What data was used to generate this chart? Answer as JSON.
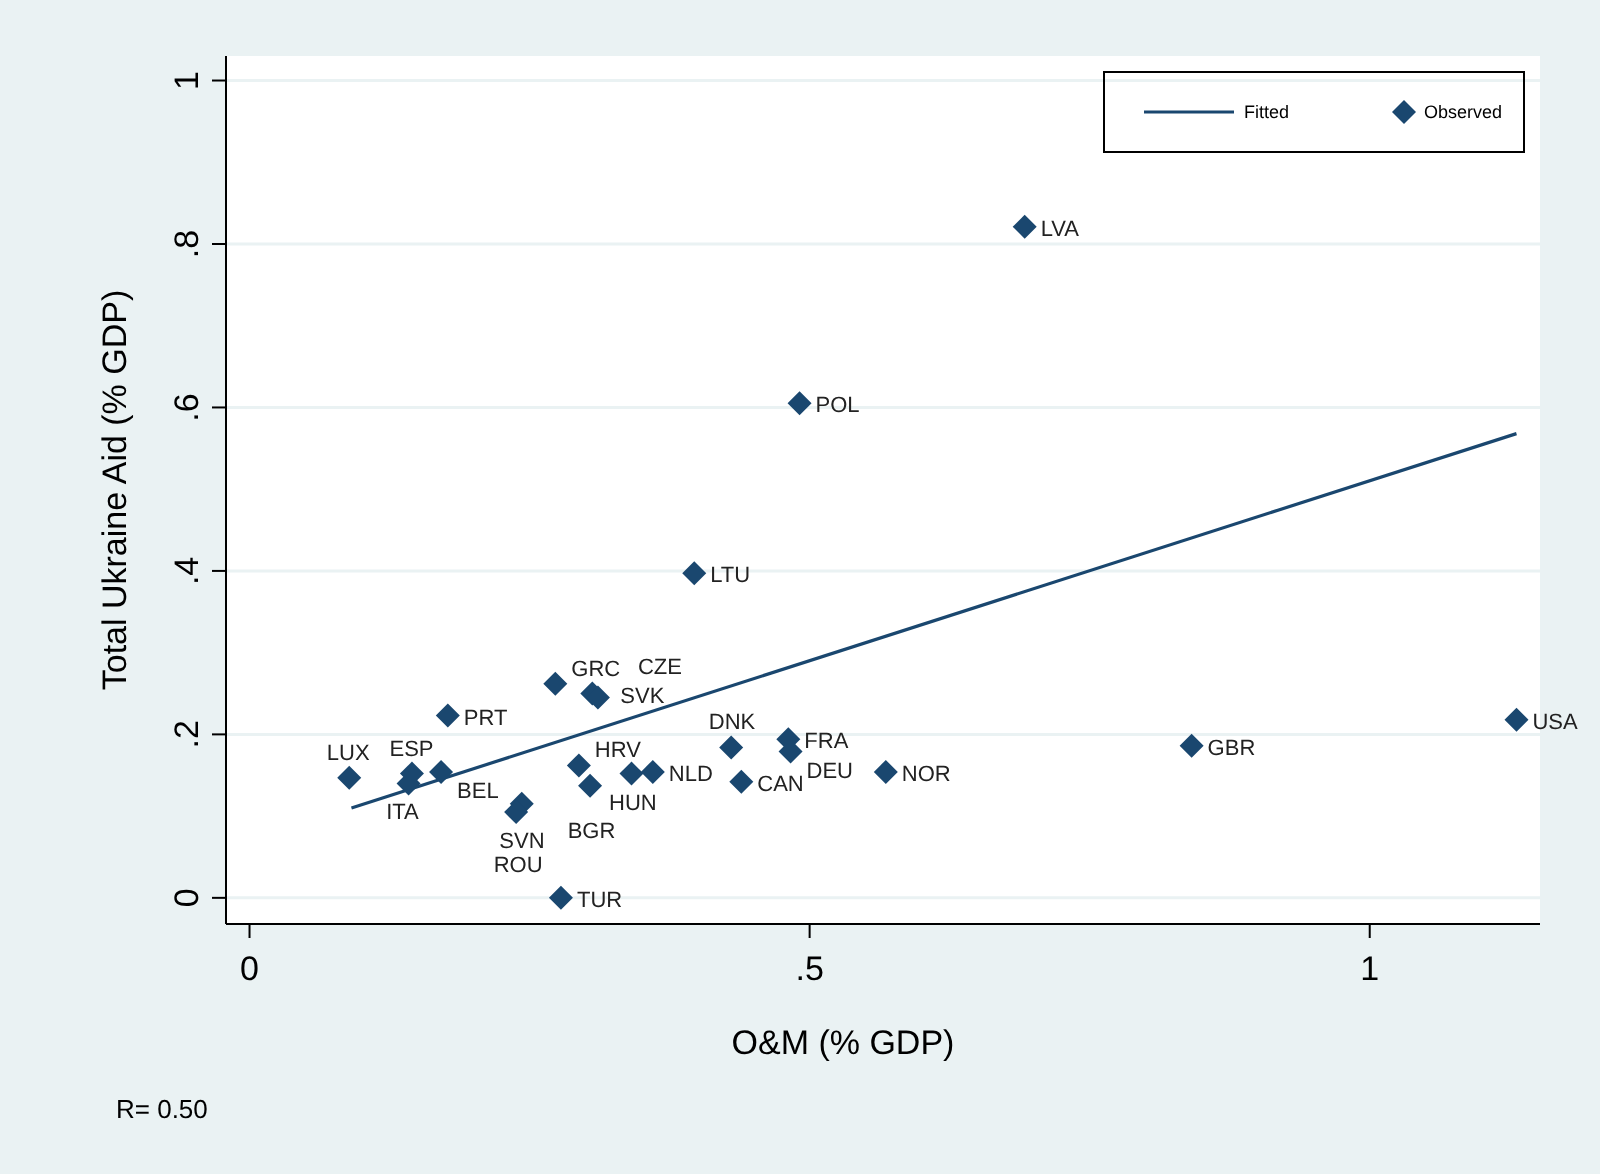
{
  "chart_data": {
    "type": "scatter",
    "xlabel": "O&M (% GDP)",
    "ylabel": "Total Ukraine Aid (% GDP)",
    "xlim": [
      -0.021,
      1.152
    ],
    "ylim": [
      -0.032,
      1.03
    ],
    "xticks": [
      0,
      {
        "value": 0.5,
        "label": ".5"
      },
      1
    ],
    "yticks": [
      0,
      {
        "value": 0.2,
        "label": ".2"
      },
      {
        "value": 0.4,
        "label": ".4"
      },
      {
        "value": 0.6,
        "label": ".6"
      },
      {
        "value": 0.8,
        "label": ".8"
      },
      1
    ],
    "grid": "y",
    "legend": "top right",
    "marker": "diamond",
    "series": [
      {
        "name": "Fitted",
        "type": "line",
        "color": "#1a476f",
        "x": [
          0.091,
          1.131
        ],
        "values": [
          0.11,
          0.568
        ],
        "marker": "none"
      },
      {
        "name": "Observed",
        "color": "#1a476f",
        "x": [
          0.692,
          0.491,
          0.397,
          0.273,
          0.306,
          0.311,
          0.177,
          0.481,
          0.43,
          0.483,
          0.841,
          1.131,
          0.568,
          0.294,
          0.089,
          0.145,
          0.171,
          0.142,
          0.341,
          0.36,
          0.304,
          0.439,
          0.243,
          0.238,
          0.278
        ],
        "values": [
          0.821,
          0.605,
          0.397,
          0.262,
          0.25,
          0.245,
          0.223,
          0.194,
          0.184,
          0.179,
          0.186,
          0.218,
          0.154,
          0.162,
          0.147,
          0.152,
          0.154,
          0.14,
          0.152,
          0.154,
          0.137,
          0.142,
          0.115,
          0.105,
          0
        ]
      }
    ],
    "annotations": [
      {
        "text": "LVA",
        "x": 0.692,
        "y": 0.821
      },
      {
        "text": "POL",
        "x": 0.491,
        "y": 0.605
      },
      {
        "text": "LTU",
        "x": 0.397,
        "y": 0.397
      },
      {
        "text": "GRC",
        "x": 0.273,
        "y": 0.262
      },
      {
        "text": "SVK",
        "x": 0.306,
        "y": 0.25
      },
      {
        "text": "CZE",
        "x": 0.311,
        "y": 0.245
      },
      {
        "text": "PRT",
        "x": 0.177,
        "y": 0.223
      },
      {
        "text": "FRA",
        "x": 0.481,
        "y": 0.194
      },
      {
        "text": "DNK",
        "x": 0.43,
        "y": 0.184
      },
      {
        "text": "DEU",
        "x": 0.483,
        "y": 0.179
      },
      {
        "text": "GBR",
        "x": 0.841,
        "y": 0.186
      },
      {
        "text": "USA",
        "x": 1.131,
        "y": 0.218
      },
      {
        "text": "NOR",
        "x": 0.568,
        "y": 0.154
      },
      {
        "text": "HRV",
        "x": 0.294,
        "y": 0.162
      },
      {
        "text": "LUX",
        "x": 0.089,
        "y": 0.147
      },
      {
        "text": "ESP",
        "x": 0.145,
        "y": 0.152
      },
      {
        "text": "BEL",
        "x": 0.171,
        "y": 0.154
      },
      {
        "text": "ITA",
        "x": 0.142,
        "y": 0.14
      },
      {
        "text": "HUN",
        "x": 0.341,
        "y": 0.152
      },
      {
        "text": "NLD",
        "x": 0.36,
        "y": 0.154
      },
      {
        "text": "BGR",
        "x": 0.304,
        "y": 0.137
      },
      {
        "text": "CAN",
        "x": 0.439,
        "y": 0.142
      },
      {
        "text": "SVN",
        "x": 0.243,
        "y": 0.115
      },
      {
        "text": "ROU",
        "x": 0.238,
        "y": 0.105
      },
      {
        "text": "TUR",
        "x": 0.278,
        "y": 0
      },
      "R= 0.50"
    ]
  }
}
